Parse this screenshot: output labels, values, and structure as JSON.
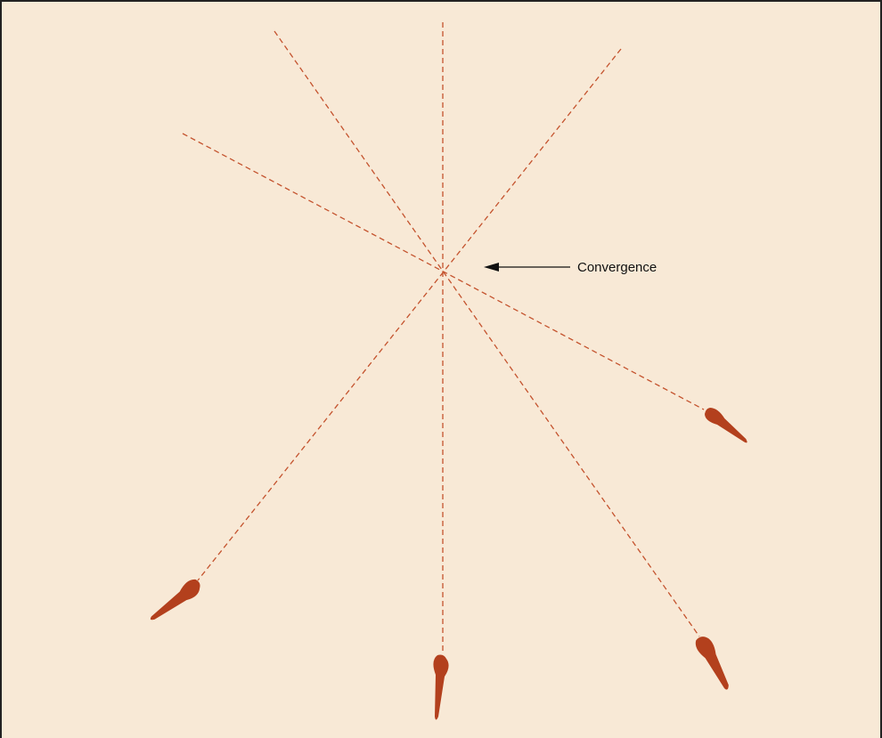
{
  "annotation": {
    "label": "Convergence"
  }
}
